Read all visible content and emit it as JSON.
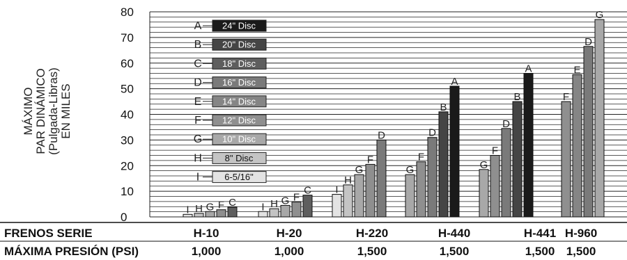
{
  "chart_data": {
    "type": "bar",
    "ylabel_lines": [
      "MÁXIMO",
      "PAR DINÁMICO",
      "(Pulgada-Libras)",
      "EN MILES"
    ],
    "ylim": [
      0,
      80
    ],
    "yticks": [
      "0",
      "10",
      "20",
      "30",
      "40",
      "50",
      "60",
      "70",
      "80"
    ],
    "grid": true,
    "legend": [
      {
        "letter": "A",
        "label": "24\" Disc",
        "color": "#1a1a1a"
      },
      {
        "letter": "B",
        "label": "20\" Disc",
        "color": "#454545"
      },
      {
        "letter": "C",
        "label": "18\" Disc",
        "color": "#5e5e5e"
      },
      {
        "letter": "D",
        "label": "16\" Disc",
        "color": "#7a7a7a"
      },
      {
        "letter": "E",
        "label": "14\" Disc",
        "color": "#858585"
      },
      {
        "letter": "F",
        "label": "12\" Disc",
        "color": "#8f8f8f"
      },
      {
        "letter": "G",
        "label": "10\" Disc",
        "color": "#a8a8a8"
      },
      {
        "letter": "H",
        "label": "8\" Disc",
        "color": "#c4c4c4"
      },
      {
        "letter": "I",
        "label": "6-5/16\"",
        "color": "#e3e3e3"
      }
    ],
    "groups": [
      {
        "name": "H-10",
        "pressure": "1,000",
        "bars": [
          {
            "letter": "I",
            "value": 1.0
          },
          {
            "letter": "H",
            "value": 1.4
          },
          {
            "letter": "G",
            "value": 2.1
          },
          {
            "letter": "F",
            "value": 2.8
          },
          {
            "letter": "C",
            "value": 3.8
          }
        ]
      },
      {
        "name": "H-20",
        "pressure": "1,000",
        "bars": [
          {
            "letter": "I",
            "value": 2.1
          },
          {
            "letter": "H",
            "value": 3.2
          },
          {
            "letter": "G",
            "value": 4.5
          },
          {
            "letter": "F",
            "value": 5.8
          },
          {
            "letter": "C",
            "value": 8.5
          }
        ]
      },
      {
        "name": "H-220",
        "pressure": "1,500",
        "bars": [
          {
            "letter": "I",
            "value": 8.8
          },
          {
            "letter": "H",
            "value": 12.5
          },
          {
            "letter": "G",
            "value": 16.5
          },
          {
            "letter": "F",
            "value": 20.5
          },
          {
            "letter": "D",
            "value": 30.0
          }
        ]
      },
      {
        "name": "H-440",
        "pressure": "1,500",
        "bars": [
          {
            "letter": "G",
            "value": 16.5
          },
          {
            "letter": "F",
            "value": 21.5
          },
          {
            "letter": "D",
            "value": 31.0
          },
          {
            "letter": "B",
            "value": 41.0
          },
          {
            "letter": "A",
            "value": 51.0
          }
        ]
      },
      {
        "name": "H-441",
        "pressure": "1,500",
        "bars": [
          {
            "letter": "G",
            "value": 18.5
          },
          {
            "letter": "F",
            "value": 24.0
          },
          {
            "letter": "D",
            "value": 34.5
          },
          {
            "letter": "B",
            "value": 45.0
          },
          {
            "letter": "A",
            "value": 56.0
          }
        ]
      },
      {
        "name": "H-960",
        "pressure": "1,500",
        "bars": [
          {
            "letter": "F",
            "value": 45.0
          },
          {
            "letter": "E",
            "value": 55.5
          },
          {
            "letter": "D",
            "value": 66.5
          },
          {
            "letter": "G",
            "value": 77.0
          }
        ]
      }
    ]
  },
  "table": {
    "series_label": "FRENOS SERIE",
    "pressure_label": "MÁXIMA PRESIÓN (PSI)"
  }
}
